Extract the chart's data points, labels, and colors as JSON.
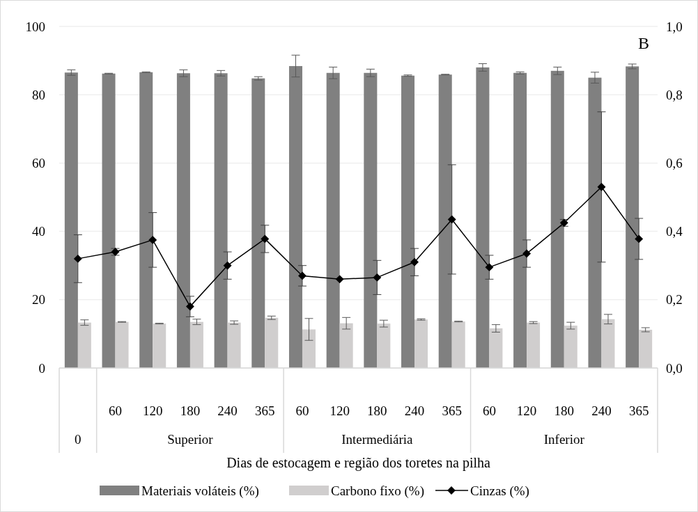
{
  "chart_data": {
    "type": "bar",
    "xlabel": "Dias de estocagem e região dos toretes na pilha",
    "categories": [
      null,
      "60",
      "120",
      "180",
      "240",
      "365",
      "60",
      "120",
      "180",
      "240",
      "365",
      "60",
      "120",
      "180",
      "240",
      "365"
    ],
    "annotations": [
      "B",
      "0",
      "Superior",
      "Intermediária",
      "Inferior"
    ],
    "series": [
      {
        "name": "Materiais voláteis (%)",
        "color": "#808080",
        "values": [
          86.5,
          86.2,
          86.6,
          86.3,
          86.3,
          84.8,
          88.4,
          86.4,
          86.4,
          85.6,
          85.9,
          88.0,
          86.4,
          87.0,
          85.0,
          88.3
        ],
        "errors": [
          0.8,
          0.1,
          0.1,
          1.0,
          0.8,
          0.5,
          3.2,
          1.7,
          1.1,
          0.2,
          0.1,
          1.1,
          0.3,
          1.1,
          1.6,
          0.7
        ]
      },
      {
        "name": "Carbono fixo (%)",
        "color": "#d0cece",
        "values": [
          13.3,
          13.5,
          13.0,
          13.5,
          13.3,
          14.7,
          11.3,
          13.1,
          13.0,
          14.2,
          13.6,
          11.6,
          13.3,
          12.4,
          14.3,
          11.2
        ],
        "errors": [
          0.8,
          0.1,
          0.1,
          0.8,
          0.5,
          0.5,
          3.2,
          1.7,
          1.0,
          0.2,
          0.1,
          1.1,
          0.3,
          1.0,
          1.4,
          0.6
        ]
      },
      {
        "name": "Cinzas (%)",
        "type": "line",
        "axis": "y2",
        "color": "#000000",
        "marker": "diamond",
        "values": [
          0.32,
          0.34,
          0.375,
          0.18,
          0.3,
          0.378,
          0.27,
          0.26,
          0.265,
          0.31,
          0.435,
          0.295,
          0.335,
          0.425,
          0.53,
          0.378
        ],
        "errors": [
          0.07,
          0.01,
          0.08,
          0.03,
          0.04,
          0.04,
          0.03,
          null,
          0.05,
          0.04,
          0.16,
          0.035,
          0.04,
          0.01,
          0.22,
          0.06
        ]
      }
    ],
    "ylim": [
      0,
      100
    ],
    "yticks": [
      0,
      20,
      40,
      60,
      80,
      100
    ],
    "y2lim": [
      0,
      1
    ],
    "y2ticks": [
      {
        "value": 0,
        "label": "0,0"
      },
      {
        "value": 0.2,
        "label": "0,2"
      },
      {
        "value": 0.4,
        "label": "0,4"
      },
      {
        "value": 0.6,
        "label": "0,6"
      },
      {
        "value": 0.8,
        "label": "0,8"
      },
      {
        "value": 1,
        "label": "1,0"
      }
    ],
    "grid": "y",
    "legend": "bottom"
  }
}
